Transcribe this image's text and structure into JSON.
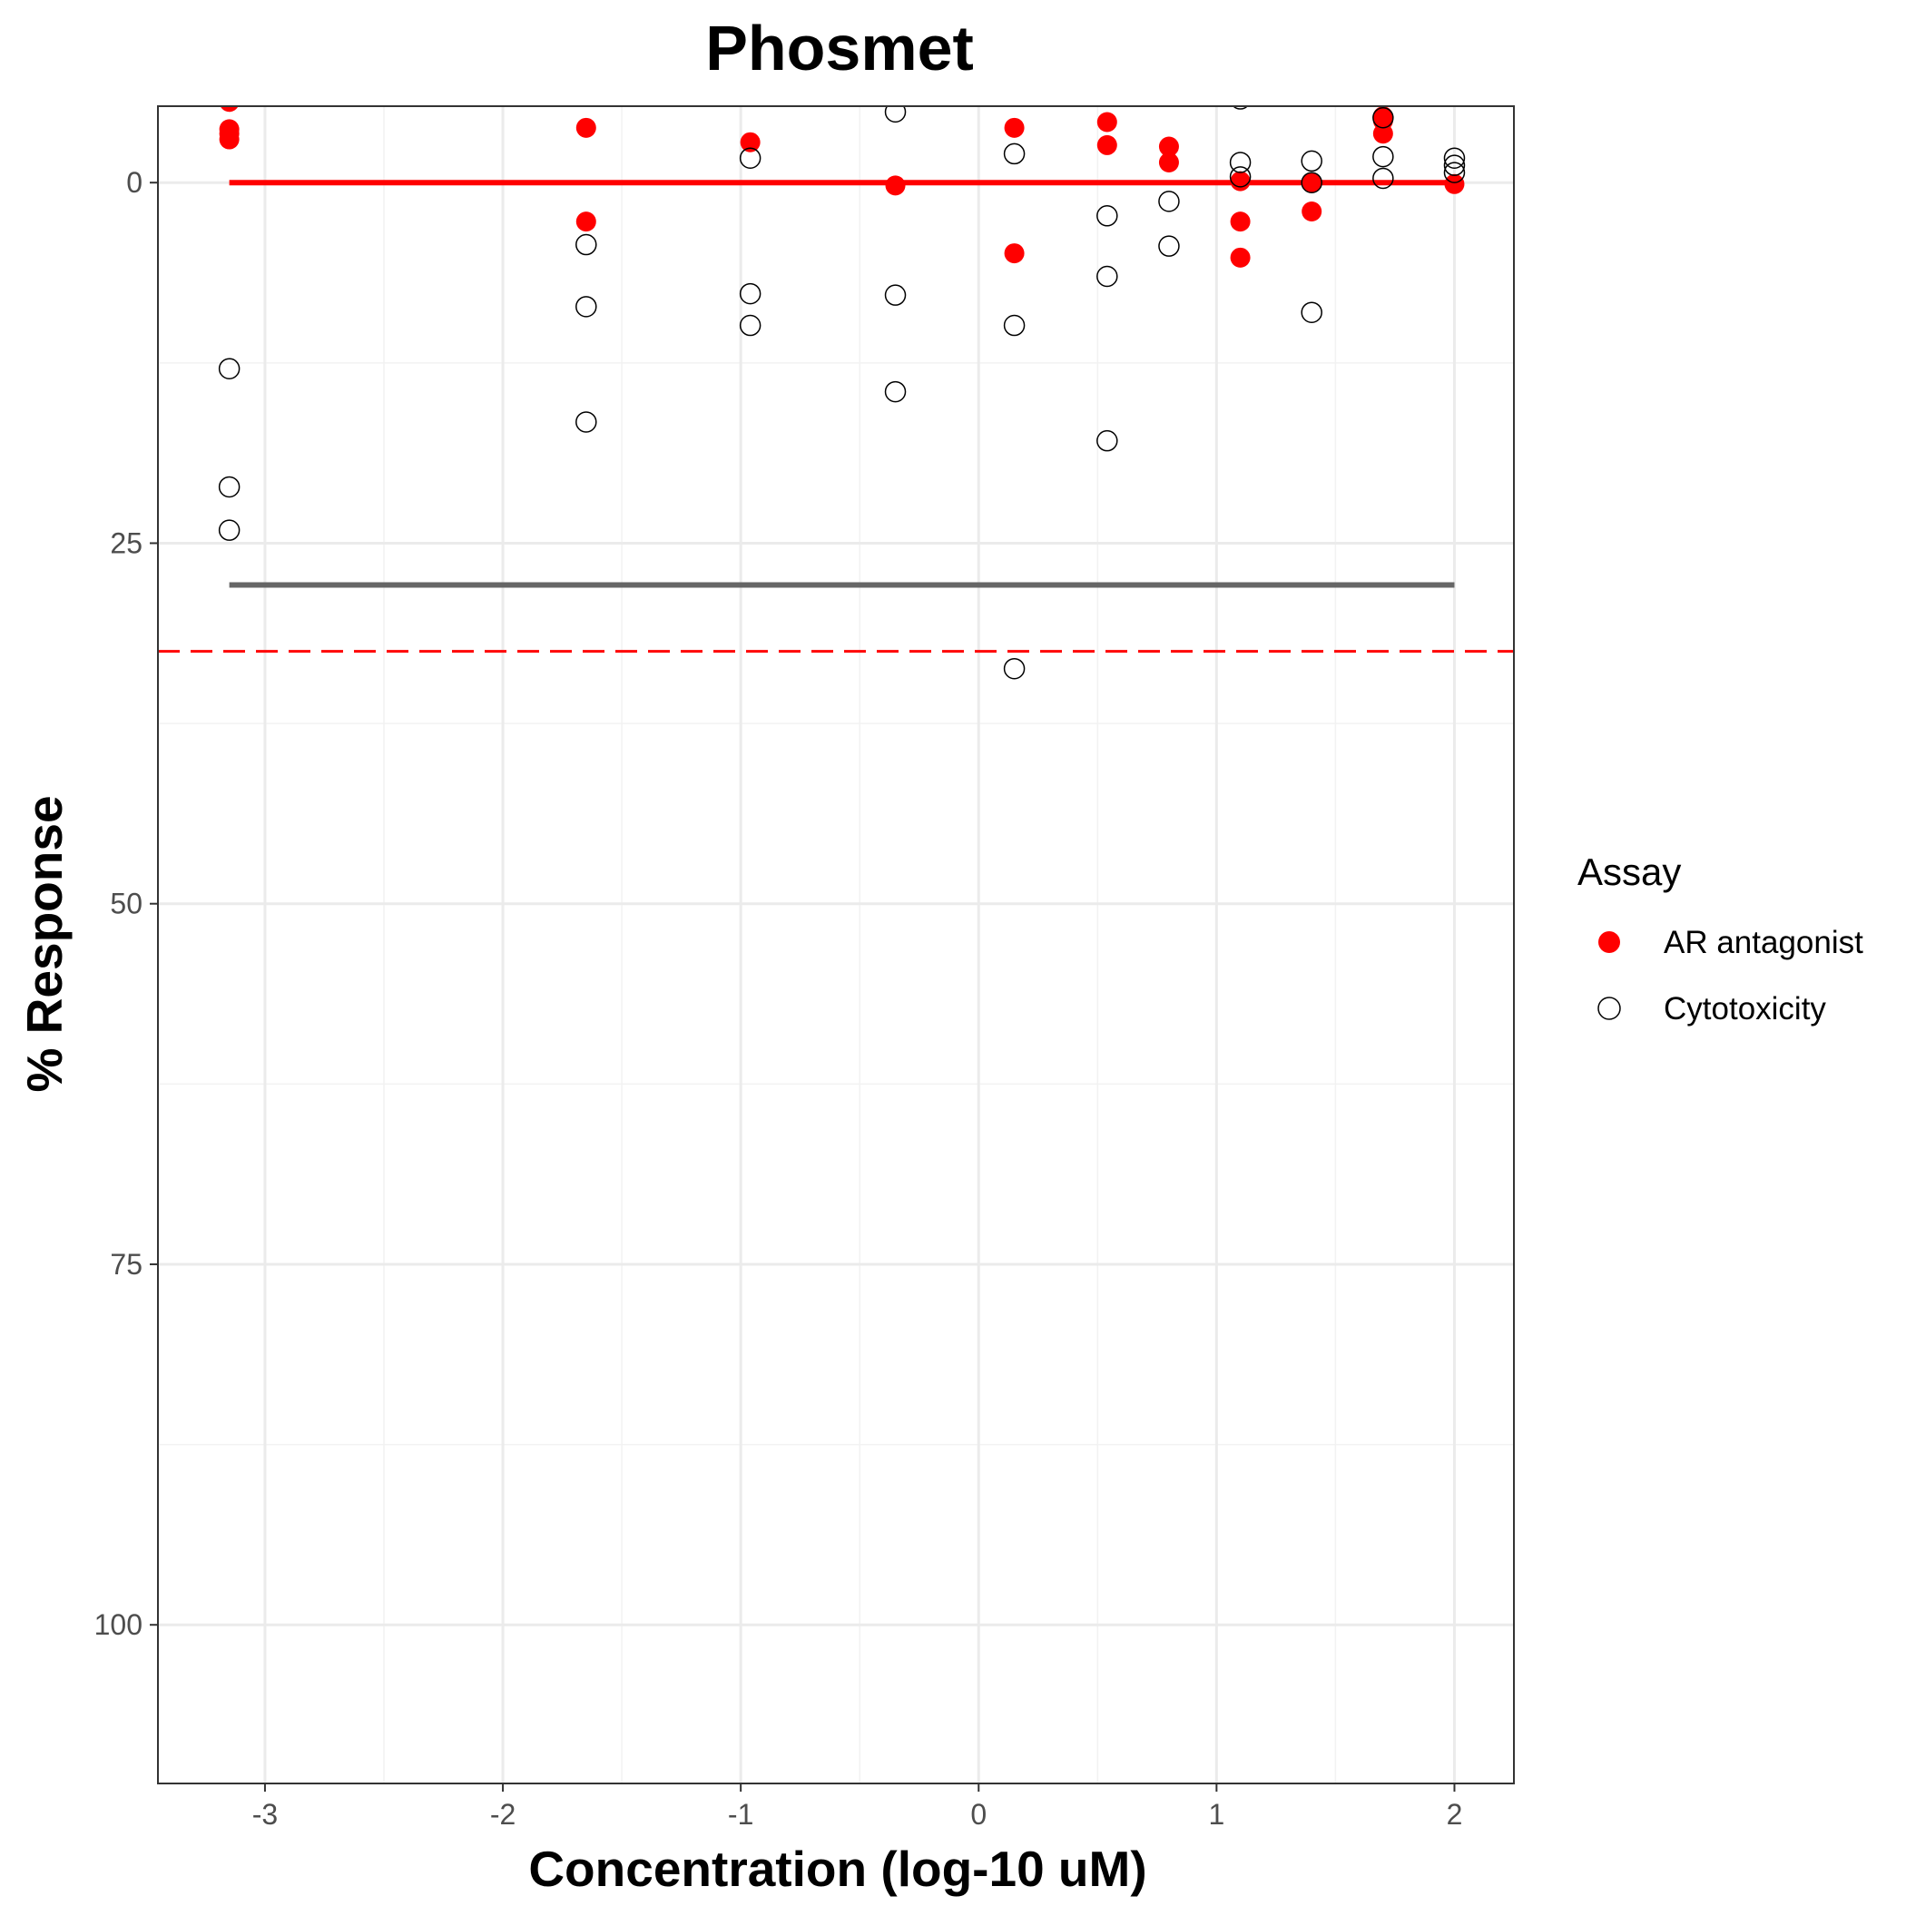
{
  "chart_data": {
    "type": "scatter",
    "title": "Phosmet",
    "xlabel": "Concentration (log-10 uM)",
    "ylabel": "% Response",
    "xlim": [
      -3.45,
      2.25
    ],
    "ylim": [
      -5.3,
      111.0
    ],
    "y_reversed": true,
    "grid": true,
    "x_ticks": [
      -3,
      -2,
      -1,
      0,
      1,
      2
    ],
    "x_tick_labels": [
      "-3",
      "-2",
      "-1",
      "0",
      "1",
      "2"
    ],
    "y_ticks": [
      0,
      25,
      50,
      75,
      100
    ],
    "y_tick_labels": [
      "0",
      "25",
      "50",
      "75",
      "100"
    ],
    "legend": {
      "title": "Assay",
      "position": "right",
      "entries": [
        {
          "label": "AR antagonist",
          "color": "#ff0000",
          "filled": true
        },
        {
          "label": "Cytotoxicity",
          "color": "#000000",
          "filled": false
        }
      ]
    },
    "series": [
      {
        "name": "AR antagonist",
        "color": "#ff0000",
        "marker": "filled-circle",
        "points": [
          [
            -3.15,
            -5.6
          ],
          [
            -3.15,
            -3.7
          ],
          [
            -3.15,
            -3.4
          ],
          [
            -3.15,
            -3.0
          ],
          [
            -1.65,
            -3.8
          ],
          [
            -1.65,
            2.7
          ],
          [
            -0.96,
            -2.8
          ],
          [
            -0.35,
            0.2
          ],
          [
            0.15,
            -3.8
          ],
          [
            0.15,
            4.9
          ],
          [
            0.54,
            -4.2
          ],
          [
            0.54,
            -2.6
          ],
          [
            0.8,
            -2.5
          ],
          [
            0.8,
            -1.4
          ],
          [
            1.1,
            -0.1
          ],
          [
            1.1,
            2.7
          ],
          [
            1.1,
            5.2
          ],
          [
            1.4,
            0.0
          ],
          [
            1.4,
            2.0
          ],
          [
            1.7,
            -4.6
          ],
          [
            1.7,
            -4.3
          ],
          [
            1.7,
            -3.4
          ],
          [
            2.0,
            0.1
          ]
        ]
      },
      {
        "name": "Cytotoxicity",
        "color": "#000000",
        "marker": "open-circle",
        "points": [
          [
            -3.15,
            12.9
          ],
          [
            -3.15,
            21.1
          ],
          [
            -3.15,
            24.1
          ],
          [
            -1.65,
            4.3
          ],
          [
            -1.65,
            8.6
          ],
          [
            -1.65,
            16.6
          ],
          [
            -0.96,
            -1.7
          ],
          [
            -0.96,
            7.7
          ],
          [
            -0.96,
            9.9
          ],
          [
            -0.35,
            -4.9
          ],
          [
            -0.35,
            7.8
          ],
          [
            -0.35,
            14.5
          ],
          [
            0.15,
            -2.0
          ],
          [
            0.15,
            9.9
          ],
          [
            0.15,
            33.7
          ],
          [
            0.54,
            2.3
          ],
          [
            0.54,
            6.5
          ],
          [
            0.54,
            17.9
          ],
          [
            0.8,
            1.3
          ],
          [
            0.8,
            4.4
          ],
          [
            1.1,
            -1.4
          ],
          [
            1.1,
            -0.4
          ],
          [
            1.1,
            -5.8
          ],
          [
            1.4,
            -1.5
          ],
          [
            1.4,
            0.0
          ],
          [
            1.4,
            9.0
          ],
          [
            1.7,
            -1.8
          ],
          [
            1.7,
            -4.5
          ],
          [
            1.7,
            -0.3
          ],
          [
            2.0,
            -1.7
          ],
          [
            2.0,
            -1.2
          ],
          [
            2.0,
            -0.7
          ]
        ]
      }
    ],
    "lines": [
      {
        "name": "AR antagonist fit",
        "color": "#ff0000",
        "style": "solid",
        "x": [
          -3.15,
          2.0
        ],
        "y": [
          0,
          0
        ]
      },
      {
        "name": "Cytotoxicity fit",
        "color": "#666666",
        "style": "solid",
        "x": [
          -3.15,
          2.0
        ],
        "y": [
          27.9,
          27.9
        ]
      },
      {
        "name": "threshold",
        "color": "#ff0000",
        "style": "dashed",
        "x": [
          -3.45,
          2.25
        ],
        "y": [
          32.5,
          32.5
        ]
      }
    ]
  }
}
